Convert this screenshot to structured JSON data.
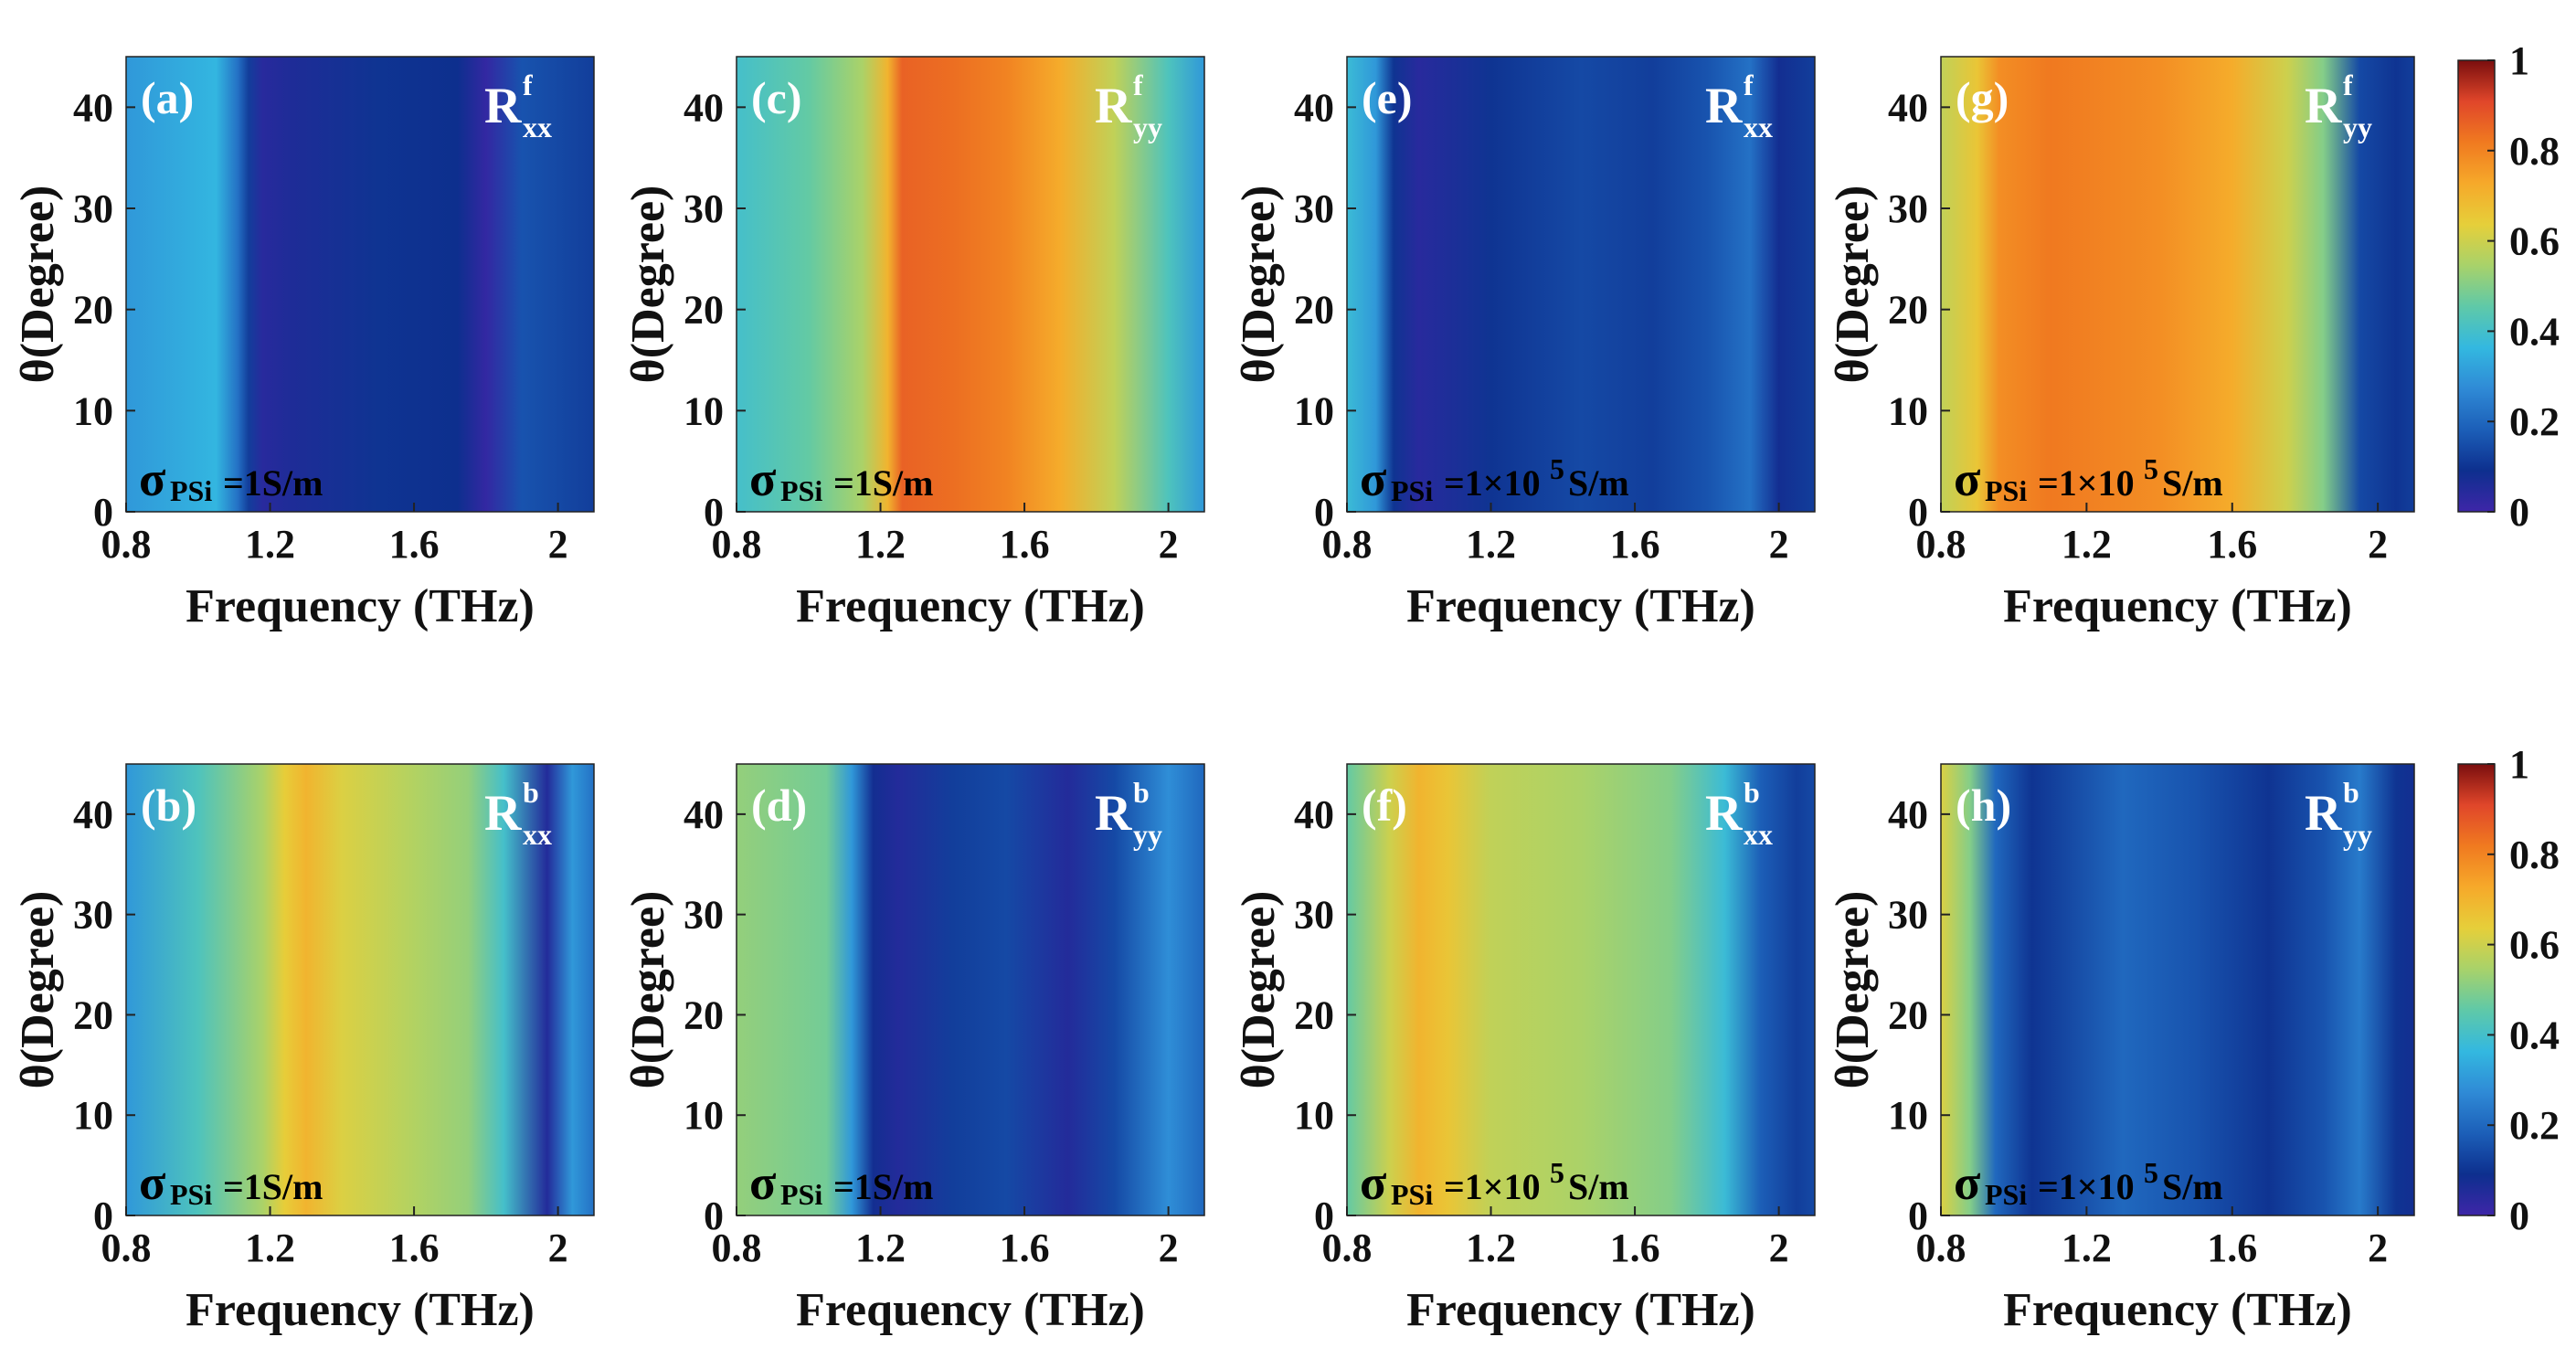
{
  "figure": {
    "x_axis_label": "Frequency (THz)",
    "y_axis_label": "θ(Degree)"
  },
  "colors": {
    "text_dark": "#111111",
    "label_light": "#ffffff",
    "colormap_stops": [
      "#3e26a8",
      "#0d2f8e",
      "#1c5fb8",
      "#2f8ad6",
      "#33b8e0",
      "#5fc9a8",
      "#a8d26a",
      "#e6cf3a",
      "#f6a92a",
      "#f07a20",
      "#e0462a",
      "#7a0e0e"
    ]
  },
  "chart_data": [
    {
      "id": "a",
      "type": "heatmap",
      "panel_label": "(a)",
      "side": "f",
      "component": "xx",
      "sigma_base": "σ",
      "sigma_sub": "PSi",
      "sigma_value": "=1S/m",
      "x_ticks": [
        "0.8",
        "1.2",
        "1.6",
        "2"
      ],
      "y_ticks": [
        "0",
        "10",
        "20",
        "30",
        "40"
      ],
      "xlim": [
        0.8,
        2.1
      ],
      "ylim": [
        0,
        45
      ],
      "bands": [
        [
          0.8,
          0.3
        ],
        [
          1.05,
          0.36
        ],
        [
          1.11,
          0.22
        ],
        [
          1.14,
          0.12
        ],
        [
          1.18,
          0.04
        ],
        [
          1.26,
          0.06
        ],
        [
          1.5,
          0.1
        ],
        [
          1.72,
          0.09
        ],
        [
          1.8,
          0.02
        ],
        [
          1.9,
          0.16
        ],
        [
          2.1,
          0.12
        ]
      ]
    },
    {
      "id": "b",
      "type": "heatmap",
      "panel_label": "(b)",
      "side": "b",
      "component": "xx",
      "sigma_base": "σ",
      "sigma_sub": "PSi",
      "sigma_value": "=1S/m",
      "x_ticks": [
        "0.8",
        "1.2",
        "1.6",
        "2"
      ],
      "y_ticks": [
        "0",
        "10",
        "20",
        "30",
        "40"
      ],
      "xlim": [
        0.8,
        2.1
      ],
      "ylim": [
        0,
        45
      ],
      "bands": [
        [
          0.8,
          0.3
        ],
        [
          1.0,
          0.42
        ],
        [
          1.18,
          0.55
        ],
        [
          1.24,
          0.64
        ],
        [
          1.3,
          0.7
        ],
        [
          1.4,
          0.62
        ],
        [
          1.6,
          0.56
        ],
        [
          1.75,
          0.52
        ],
        [
          1.85,
          0.4
        ],
        [
          1.97,
          0.05
        ],
        [
          2.04,
          0.3
        ],
        [
          2.1,
          0.22
        ]
      ]
    },
    {
      "id": "c",
      "type": "heatmap",
      "panel_label": "(c)",
      "side": "f",
      "component": "yy",
      "sigma_base": "σ",
      "sigma_sub": "PSi",
      "sigma_value": "=1S/m",
      "x_ticks": [
        "0.8",
        "1.2",
        "1.6",
        "2"
      ],
      "y_ticks": [
        "0",
        "10",
        "20",
        "30",
        "40"
      ],
      "xlim": [
        0.8,
        2.1
      ],
      "ylim": [
        0,
        45
      ],
      "bands": [
        [
          0.8,
          0.4
        ],
        [
          1.0,
          0.46
        ],
        [
          1.15,
          0.55
        ],
        [
          1.22,
          0.7
        ],
        [
          1.26,
          0.86
        ],
        [
          1.4,
          0.84
        ],
        [
          1.55,
          0.8
        ],
        [
          1.7,
          0.72
        ],
        [
          1.85,
          0.58
        ],
        [
          2.0,
          0.42
        ],
        [
          2.1,
          0.3
        ]
      ]
    },
    {
      "id": "d",
      "type": "heatmap",
      "panel_label": "(d)",
      "side": "b",
      "component": "yy",
      "sigma_base": "σ",
      "sigma_sub": "PSi",
      "sigma_value": "=1S/m",
      "x_ticks": [
        "0.8",
        "1.2",
        "1.6",
        "2"
      ],
      "y_ticks": [
        "0",
        "10",
        "20",
        "30",
        "40"
      ],
      "xlim": [
        0.8,
        2.1
      ],
      "ylim": [
        0,
        45
      ],
      "bands": [
        [
          0.8,
          0.52
        ],
        [
          1.05,
          0.48
        ],
        [
          1.12,
          0.3
        ],
        [
          1.18,
          0.08
        ],
        [
          1.25,
          0.05
        ],
        [
          1.4,
          0.12
        ],
        [
          1.55,
          0.14
        ],
        [
          1.72,
          0.05
        ],
        [
          1.85,
          0.14
        ],
        [
          2.0,
          0.28
        ],
        [
          2.1,
          0.2
        ]
      ]
    },
    {
      "id": "e",
      "type": "heatmap",
      "panel_label": "(e)",
      "side": "f",
      "component": "xx",
      "sigma_base": "σ",
      "sigma_sub": "PSi",
      "sigma_value": "=1×10",
      "sigma_exp": "5",
      "sigma_unit": "S/m",
      "x_ticks": [
        "0.8",
        "1.2",
        "1.6",
        "2"
      ],
      "y_ticks": [
        "0",
        "10",
        "20",
        "30",
        "40"
      ],
      "xlim": [
        0.8,
        2.1
      ],
      "ylim": [
        0,
        45
      ],
      "bands": [
        [
          0.8,
          0.38
        ],
        [
          0.88,
          0.3
        ],
        [
          0.93,
          0.1
        ],
        [
          1.0,
          0.04
        ],
        [
          1.2,
          0.1
        ],
        [
          1.45,
          0.14
        ],
        [
          1.65,
          0.12
        ],
        [
          1.8,
          0.16
        ],
        [
          1.92,
          0.22
        ],
        [
          2.0,
          0.08
        ],
        [
          2.1,
          0.12
        ]
      ]
    },
    {
      "id": "f",
      "type": "heatmap",
      "panel_label": "(f)",
      "side": "b",
      "component": "xx",
      "sigma_base": "σ",
      "sigma_sub": "PSi",
      "sigma_value": "=1×10",
      "sigma_exp": "5",
      "sigma_unit": "S/m",
      "x_ticks": [
        "0.8",
        "1.2",
        "1.6",
        "2"
      ],
      "y_ticks": [
        "0",
        "10",
        "20",
        "30",
        "40"
      ],
      "xlim": [
        0.8,
        2.1
      ],
      "ylim": [
        0,
        45
      ],
      "bands": [
        [
          0.8,
          0.46
        ],
        [
          0.92,
          0.6
        ],
        [
          1.0,
          0.7
        ],
        [
          1.08,
          0.66
        ],
        [
          1.2,
          0.58
        ],
        [
          1.45,
          0.55
        ],
        [
          1.7,
          0.5
        ],
        [
          1.85,
          0.38
        ],
        [
          1.95,
          0.18
        ],
        [
          2.05,
          0.12
        ],
        [
          2.1,
          0.14
        ]
      ]
    },
    {
      "id": "g",
      "type": "heatmap",
      "panel_label": "(g)",
      "side": "f",
      "component": "yy",
      "sigma_base": "σ",
      "sigma_sub": "PSi",
      "sigma_value": "=1×10",
      "sigma_exp": "5",
      "sigma_unit": "S/m",
      "x_ticks": [
        "0.8",
        "1.2",
        "1.6",
        "2"
      ],
      "y_ticks": [
        "0",
        "10",
        "20",
        "30",
        "40"
      ],
      "xlim": [
        0.8,
        2.1
      ],
      "ylim": [
        0,
        45
      ],
      "bands": [
        [
          0.8,
          0.58
        ],
        [
          0.9,
          0.66
        ],
        [
          0.96,
          0.78
        ],
        [
          1.1,
          0.82
        ],
        [
          1.4,
          0.78
        ],
        [
          1.6,
          0.72
        ],
        [
          1.75,
          0.6
        ],
        [
          1.85,
          0.5
        ],
        [
          1.95,
          0.14
        ],
        [
          2.05,
          0.1
        ],
        [
          2.1,
          0.12
        ]
      ]
    },
    {
      "id": "h",
      "type": "heatmap",
      "panel_label": "(h)",
      "side": "b",
      "component": "yy",
      "sigma_base": "σ",
      "sigma_sub": "PSi",
      "sigma_value": "=1×10",
      "sigma_exp": "5",
      "sigma_unit": "S/m",
      "x_ticks": [
        "0.8",
        "1.2",
        "1.6",
        "2"
      ],
      "y_ticks": [
        "0",
        "10",
        "20",
        "30",
        "40"
      ],
      "xlim": [
        0.8,
        2.1
      ],
      "ylim": [
        0,
        45
      ],
      "bands": [
        [
          0.8,
          0.62
        ],
        [
          0.88,
          0.5
        ],
        [
          0.95,
          0.2
        ],
        [
          1.05,
          0.1
        ],
        [
          1.3,
          0.2
        ],
        [
          1.5,
          0.16
        ],
        [
          1.7,
          0.1
        ],
        [
          1.85,
          0.16
        ],
        [
          1.95,
          0.24
        ],
        [
          2.05,
          0.1
        ],
        [
          2.1,
          0.08
        ]
      ]
    }
  ],
  "colorbars": [
    {
      "id": "top",
      "ticks": [
        "1",
        "0.8",
        "0.6",
        "0.4",
        "0.2",
        "0"
      ],
      "range": [
        0,
        1
      ]
    },
    {
      "id": "bottom",
      "ticks": [
        "1",
        "0.8",
        "0.6",
        "0.4",
        "0.2",
        "0"
      ],
      "range": [
        0,
        1
      ]
    }
  ]
}
